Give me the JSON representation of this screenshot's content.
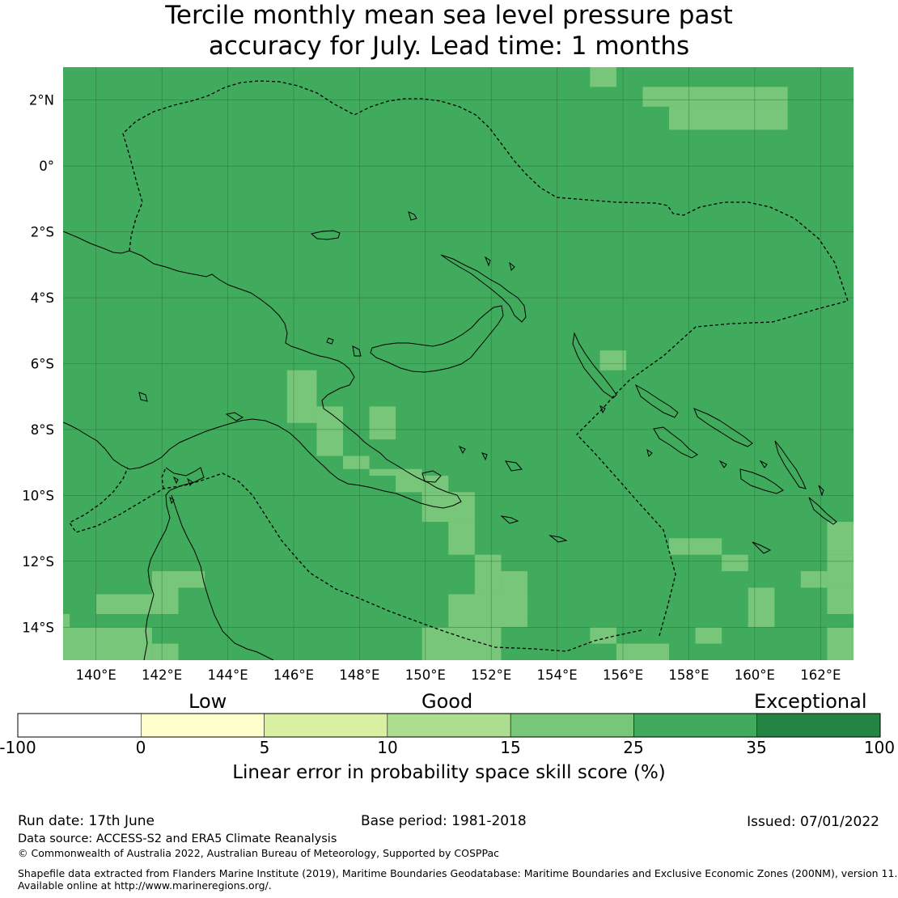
{
  "title": {
    "line1": "Tercile monthly mean sea level pressure past",
    "line2": "accuracy for July. Lead time: 1 months"
  },
  "map": {
    "lon_range": [
      139,
      163
    ],
    "lat_range": [
      -15,
      3
    ],
    "lat_ticks": [
      {
        "value": 2,
        "label": "2°N"
      },
      {
        "value": 0,
        "label": "0°"
      },
      {
        "value": -2,
        "label": "2°S"
      },
      {
        "value": -4,
        "label": "4°S"
      },
      {
        "value": -6,
        "label": "6°S"
      },
      {
        "value": -8,
        "label": "8°S"
      },
      {
        "value": -10,
        "label": "10°S"
      },
      {
        "value": -12,
        "label": "12°S"
      },
      {
        "value": -14,
        "label": "14°S"
      }
    ],
    "lon_ticks": [
      {
        "value": 140,
        "label": "140°E"
      },
      {
        "value": 142,
        "label": "142°E"
      },
      {
        "value": 144,
        "label": "144°E"
      },
      {
        "value": 146,
        "label": "146°E"
      },
      {
        "value": 148,
        "label": "148°E"
      },
      {
        "value": 150,
        "label": "150°E"
      },
      {
        "value": 152,
        "label": "152°E"
      },
      {
        "value": 154,
        "label": "154°E"
      },
      {
        "value": 156,
        "label": "156°E"
      },
      {
        "value": 158,
        "label": "158°E"
      },
      {
        "value": 160,
        "label": "160°E"
      },
      {
        "value": 162,
        "label": "162°E"
      }
    ],
    "grid_resolution_deg": 0.83,
    "base_category": "25 to 35",
    "lighter_cells_15_to_25": [
      [
        155.0,
        2.4,
        155.8,
        3.0
      ],
      [
        156.6,
        1.8,
        161.0,
        2.4
      ],
      [
        157.4,
        1.1,
        161.0,
        1.8
      ],
      [
        155.3,
        -6.2,
        156.1,
        -5.6
      ],
      [
        145.8,
        -7.8,
        146.7,
        -6.2
      ],
      [
        146.7,
        -8.8,
        147.5,
        -7.3
      ],
      [
        147.5,
        -9.2,
        148.3,
        -8.8
      ],
      [
        148.3,
        -8.3,
        149.1,
        -7.3
      ],
      [
        148.3,
        -9.4,
        149.9,
        -9.2
      ],
      [
        149.1,
        -9.9,
        150.7,
        -9.4
      ],
      [
        149.9,
        -10.8,
        151.5,
        -9.9
      ],
      [
        150.7,
        -11.8,
        151.5,
        -10.8
      ],
      [
        151.5,
        -13.0,
        152.3,
        -11.8
      ],
      [
        152.3,
        -13.6,
        153.1,
        -12.3
      ],
      [
        150.7,
        -14.0,
        153.1,
        -13.0
      ],
      [
        149.9,
        -15.0,
        152.3,
        -14.0
      ],
      [
        155.0,
        -14.5,
        155.8,
        -14.0
      ],
      [
        155.8,
        -15.0,
        157.4,
        -14.5
      ],
      [
        157.4,
        -11.8,
        159.0,
        -11.3
      ],
      [
        159.0,
        -12.3,
        159.8,
        -11.8
      ],
      [
        158.2,
        -14.5,
        159.0,
        -14.0
      ],
      [
        159.8,
        -14.0,
        160.6,
        -12.8
      ],
      [
        161.4,
        -12.8,
        162.2,
        -12.3
      ],
      [
        162.2,
        -12.8,
        163.0,
        -11.8
      ],
      [
        162.2,
        -11.8,
        163.0,
        -10.8
      ],
      [
        162.2,
        -13.6,
        163.0,
        -12.8
      ],
      [
        162.2,
        -15.0,
        163.0,
        -14.0
      ],
      [
        140.0,
        -13.6,
        141.7,
        -13.0
      ],
      [
        141.7,
        -13.6,
        142.5,
        -12.3
      ],
      [
        142.5,
        -12.8,
        143.3,
        -12.3
      ],
      [
        139.0,
        -14.0,
        139.2,
        -13.6
      ],
      [
        139.0,
        -15.0,
        141.7,
        -14.0
      ],
      [
        141.7,
        -15.0,
        142.5,
        -14.5
      ]
    ],
    "colors": {
      "cat_25_35": "#41ab5d",
      "cat_15_25": "#78c679",
      "coast": "#000000",
      "eez": "#000000"
    }
  },
  "colorbar": {
    "head_low": "Low",
    "head_good": "Good",
    "head_exceptional": "Exceptional",
    "segments": [
      {
        "from": -100,
        "to": 0,
        "color": "#ffffff"
      },
      {
        "from": 0,
        "to": 5,
        "color": "#ffffcc"
      },
      {
        "from": 5,
        "to": 10,
        "color": "#d9f0a3"
      },
      {
        "from": 10,
        "to": 15,
        "color": "#addd8e"
      },
      {
        "from": 15,
        "to": 25,
        "color": "#78c679"
      },
      {
        "from": 25,
        "to": 35,
        "color": "#41ab5d"
      },
      {
        "from": 35,
        "to": 100,
        "color": "#238443"
      }
    ],
    "ticks": [
      "-100",
      "0",
      "5",
      "10",
      "15",
      "25",
      "35",
      "100"
    ],
    "label": "Linear error in probability space skill score (%)"
  },
  "footer": {
    "run_date": "Run date: 17th June",
    "base_period": "Base period: 1981-2018",
    "issued": "Issued: 07/01/2022",
    "data_source": "Data source: ACCESS-S2 and ERA5 Climate Reanalysis",
    "copyright": "© Commonwealth of Australia 2022, Australian Bureau of Meteorology, Supported by COSPPac",
    "shapefile_1": "Shapefile data extracted from Flanders Marine Institute (2019), Maritime Boundaries Geodatabase: Maritime Boundaries and Exclusive Economic Zones (200NM), version 11.",
    "shapefile_2": "Available online at http://www.marineregions.org/."
  }
}
